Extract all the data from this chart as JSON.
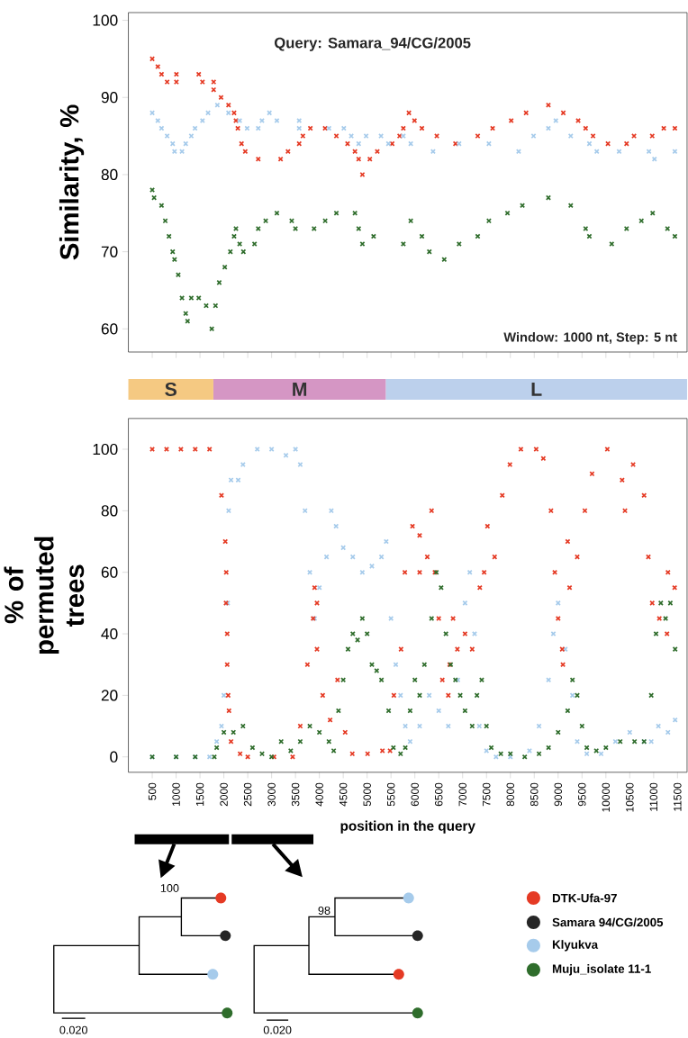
{
  "chart_data": [
    {
      "type": "scatter",
      "title": "Query: Samara_94/CG/2005",
      "ylabel": "Similarity, %",
      "annotations": [
        "Window: 1000 nt, Step: 5 nt"
      ],
      "marker": "cross",
      "tick_labels": "y",
      "xlim": [
        0,
        11700
      ],
      "xticks": [
        500,
        1000,
        1500,
        2000,
        2500,
        3000,
        3500,
        4000,
        4500,
        5000,
        5500,
        6000,
        6500,
        7000,
        7500,
        8000,
        8500,
        9000,
        9500,
        10000,
        10500,
        11000,
        11500
      ],
      "ylim": [
        57,
        101
      ],
      "yticks": [
        60,
        70,
        80,
        90,
        100
      ],
      "series": [
        {
          "color": "#e53a24",
          "x": [
            500,
            617,
            695,
            812,
            1006,
            1006,
            1474,
            1552,
            1786,
            1786,
            1941,
            2097,
            2214,
            2253,
            2292,
            2370,
            2448,
            2720,
            3188,
            3343,
            3577,
            3655,
            3811,
            4120,
            4356,
            4590,
            4745,
            4823,
            4901,
            5057,
            5213,
            5524,
            5680,
            5758,
            5875,
            5992,
            6147,
            6459,
            6850,
            7316,
            7628,
            8017,
            8329,
            8796,
            9108,
            9420,
            9576,
            9731,
            10043,
            10433,
            10589,
            10970,
            11212,
            11445
          ],
          "values": [
            95,
            94,
            93,
            92,
            92,
            93,
            93,
            92,
            92,
            91,
            90,
            89,
            88,
            87,
            86,
            84,
            83,
            82,
            82,
            83,
            84,
            85,
            86,
            86,
            85,
            84,
            83,
            82,
            80,
            82,
            83,
            84,
            85,
            86,
            88,
            87,
            86,
            85,
            84,
            85,
            86,
            87,
            88,
            89,
            88,
            87,
            86,
            85,
            84,
            84,
            85,
            85,
            86,
            86
          ]
        },
        {
          "color": "#a6cbeb",
          "x": [
            500,
            617,
            695,
            812,
            928,
            967,
            1123,
            1201,
            1318,
            1396,
            1552,
            1669,
            1864,
            2097,
            2331,
            2487,
            2720,
            2798,
            2954,
            3110,
            3577,
            3577,
            4200,
            4512,
            4668,
            4823,
            4979,
            5291,
            5446,
            5758,
            5914,
            6381,
            6926,
            7550,
            8173,
            8485,
            8796,
            8952,
            9264,
            9654,
            9809,
            10277,
            10901,
            11017,
            11445
          ],
          "values": [
            88,
            87,
            86,
            85,
            84,
            83,
            83,
            84,
            85,
            86,
            87,
            88,
            89,
            88,
            87,
            86,
            86,
            87,
            88,
            87,
            87,
            86,
            86,
            86,
            85,
            84,
            85,
            85,
            84,
            85,
            84,
            83,
            84,
            84,
            83,
            85,
            86,
            87,
            85,
            84,
            83,
            83,
            83,
            82,
            83
          ]
        },
        {
          "color": "#2f6d2c",
          "x": [
            500,
            539,
            695,
            773,
            851,
            928,
            967,
            1045,
            1123,
            1201,
            1240,
            1318,
            1474,
            1630,
            1747,
            1825,
            1903,
            2019,
            2136,
            2214,
            2253,
            2331,
            2409,
            2642,
            2720,
            2876,
            3110,
            3421,
            3499,
            3889,
            4122,
            4356,
            4745,
            4823,
            4901,
            5135,
            5758,
            5914,
            6147,
            6303,
            6615,
            6926,
            7316,
            7550,
            7939,
            8251,
            8796,
            9264,
            9576,
            9654,
            10122,
            10433,
            10744,
            10979,
            11290,
            11445
          ],
          "values": [
            78,
            77,
            76,
            74,
            72,
            70,
            69,
            67,
            64,
            62,
            61,
            64,
            64,
            63,
            60,
            63,
            66,
            68,
            70,
            72,
            73,
            71,
            70,
            71,
            73,
            74,
            75,
            74,
            73,
            73,
            74,
            75,
            75,
            73,
            71,
            72,
            71,
            74,
            72,
            70,
            69,
            71,
            72,
            74,
            75,
            76,
            77,
            76,
            73,
            72,
            71,
            73,
            74,
            75,
            73,
            72
          ]
        }
      ]
    },
    {
      "type": "bar",
      "orientation": "horizontal",
      "stacked": true,
      "tick_labels": false,
      "categories": [
        null
      ],
      "xlim": [
        0,
        11700
      ],
      "series": [
        {
          "name": "S",
          "color": "#f5c982",
          "values": [
            1780
          ]
        },
        {
          "name": "M",
          "color": "#d596c4",
          "values": [
            3610
          ]
        },
        {
          "name": "L",
          "color": "#bcd0ec",
          "values": [
            6310
          ]
        }
      ]
    },
    {
      "type": "scatter",
      "xlabel": "position in the query",
      "ylabel": "% of permuted trees",
      "marker": "cross",
      "legend": "bottom right",
      "annotations": [
        "100",
        "98",
        "0.020",
        "0.020",
        "Samara 94/CG/2005"
      ],
      "xlim": [
        0,
        11700
      ],
      "xticks": [
        500,
        1000,
        1500,
        2000,
        2500,
        3000,
        3500,
        4000,
        4500,
        5000,
        5500,
        6000,
        6500,
        7000,
        7500,
        8000,
        8500,
        9000,
        9500,
        10000,
        10500,
        11000,
        11500
      ],
      "ylim": [
        -5,
        110
      ],
      "yticks": [
        0,
        20,
        40,
        60,
        80,
        100
      ],
      "series": [
        {
          "name": "Klyukva",
          "color": "#a6cbeb",
          "x": [
            500,
            1000,
            1400,
            1700,
            1850,
            1950,
            2000,
            2080,
            2100,
            2150,
            2300,
            2400,
            2700,
            3000,
            3300,
            3500,
            3600,
            3700,
            3800,
            3900,
            4000,
            4150,
            4250,
            4350,
            4500,
            4700,
            4900,
            5100,
            5300,
            5400,
            5500,
            5600,
            5700,
            5800,
            5900,
            6100,
            6300,
            6500,
            6700,
            6900,
            7050,
            7150,
            7250,
            7350,
            7500,
            7700,
            8000,
            8400,
            8600,
            8800,
            8900,
            9000,
            9150,
            9300,
            9400,
            9600,
            9900,
            10200,
            10500,
            10800,
            10950,
            11100,
            11300,
            11450
          ],
          "values": [
            0,
            0,
            0,
            0,
            5,
            10,
            20,
            50,
            80,
            90,
            90,
            95,
            100,
            100,
            98,
            100,
            95,
            80,
            60,
            45,
            55,
            65,
            80,
            75,
            68,
            65,
            60,
            62,
            65,
            70,
            45,
            30,
            20,
            10,
            5,
            10,
            20,
            15,
            10,
            25,
            50,
            60,
            40,
            10,
            2,
            0,
            0,
            2,
            10,
            25,
            40,
            50,
            35,
            20,
            5,
            1,
            1,
            5,
            8,
            5,
            5,
            10,
            8,
            12
          ]
        },
        {
          "name": "DTK-Ufa-97",
          "color": "#e53a24",
          "x": [
            500,
            800,
            1100,
            1400,
            1700,
            1950,
            2030,
            2045,
            2050,
            2070,
            2070,
            2090,
            2107,
            2150,
            2340,
            2500,
            3050,
            3440,
            3600,
            3750,
            3870,
            3900,
            3950,
            3950,
            4070,
            4225,
            4380,
            4540,
            4690,
            5010,
            5320,
            5480,
            5560,
            5710,
            5790,
            5950,
            6100,
            6100,
            6260,
            6350,
            6420,
            6500,
            6575,
            6700,
            6730,
            6800,
            6890,
            7050,
            7200,
            7360,
            7450,
            7520,
            7670,
            7830,
            7990,
            8220,
            8540,
            8690,
            8850,
            8930,
            9000,
            9085,
            9100,
            9200,
            9240,
            9400,
            9560,
            9710,
            10030,
            10340,
            10400,
            10570,
            10800,
            10890,
            10970,
            11120,
            11280,
            11300,
            11440
          ],
          "values": [
            100,
            100,
            100,
            100,
            100,
            85,
            70,
            50,
            60,
            30,
            40,
            20,
            15,
            5,
            1,
            0,
            0,
            0,
            10,
            30,
            45,
            55,
            35,
            50,
            20,
            12,
            25,
            8,
            1,
            1,
            2,
            2,
            20,
            35,
            60,
            75,
            72,
            60,
            65,
            80,
            60,
            45,
            25,
            20,
            30,
            45,
            35,
            40,
            35,
            55,
            60,
            75,
            65,
            85,
            95,
            100,
            100,
            97,
            80,
            60,
            45,
            35,
            30,
            70,
            55,
            65,
            80,
            92,
            100,
            90,
            80,
            95,
            85,
            65,
            50,
            45,
            40,
            60,
            55
          ]
        },
        {
          "name": "Muju_isolate 11-1",
          "color": "#2f6d2c",
          "x": [
            500,
            1000,
            1400,
            1800,
            1850,
            2000,
            2200,
            2400,
            2600,
            2800,
            3000,
            3200,
            3400,
            3600,
            3800,
            4000,
            4200,
            4300,
            4400,
            4500,
            4600,
            4700,
            4800,
            4900,
            5000,
            5100,
            5200,
            5300,
            5450,
            5550,
            5700,
            5800,
            5900,
            6000,
            6100,
            6200,
            6350,
            6450,
            6550,
            6650,
            6750,
            6850,
            6950,
            7050,
            7200,
            7300,
            7400,
            7500,
            7600,
            7800,
            8000,
            8300,
            8600,
            8800,
            9000,
            9200,
            9300,
            9400,
            9500,
            9600,
            9800,
            10000,
            10300,
            10600,
            10800,
            10950,
            11050,
            11150,
            11250,
            11350,
            11450
          ],
          "values": [
            0,
            0,
            0,
            0,
            3,
            8,
            8,
            10,
            3,
            1,
            0,
            5,
            2,
            5,
            10,
            8,
            5,
            2,
            15,
            25,
            35,
            40,
            38,
            45,
            40,
            30,
            28,
            25,
            15,
            3,
            1,
            3,
            15,
            25,
            20,
            30,
            45,
            60,
            55,
            40,
            30,
            25,
            20,
            15,
            10,
            20,
            25,
            10,
            3,
            1,
            1,
            0,
            1,
            3,
            8,
            15,
            25,
            20,
            10,
            3,
            2,
            3,
            5,
            5,
            5,
            20,
            40,
            50,
            45,
            50,
            35
          ]
        }
      ]
    }
  ]
}
